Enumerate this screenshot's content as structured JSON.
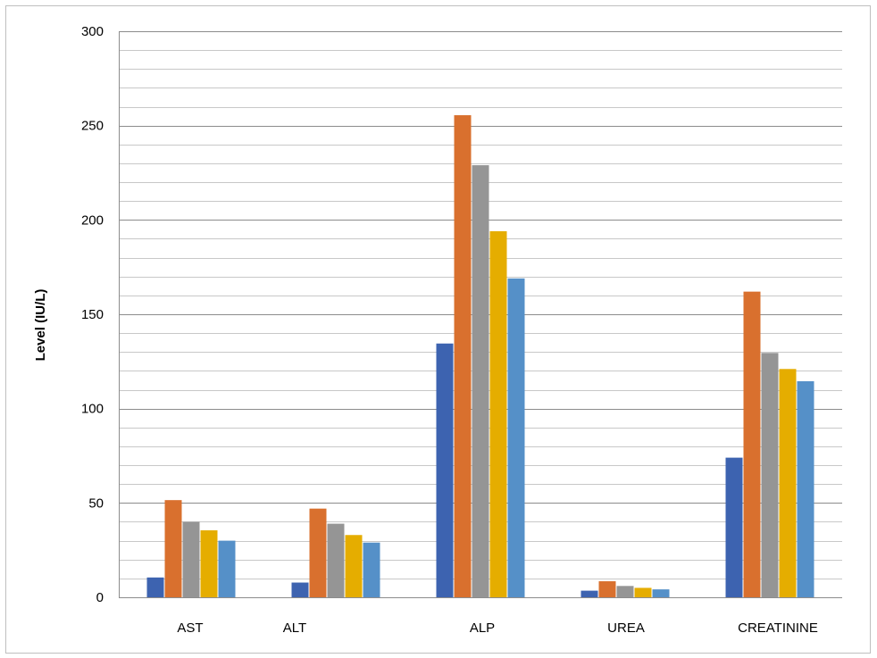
{
  "chart_data": {
    "type": "bar",
    "title": "",
    "xlabel": "",
    "ylabel": "Level (IU/L)",
    "ylim": [
      0,
      300
    ],
    "major_ticks": [
      0,
      50,
      100,
      150,
      200,
      250,
      300
    ],
    "minor_step": 10,
    "grid": true,
    "legend": "none",
    "categories": [
      "AST",
      "ALT",
      "ALP",
      "UREA",
      "CREATININE"
    ],
    "series": [
      {
        "color": "#3d63b0",
        "values": [
          10.5,
          7.8,
          134.5,
          3.5,
          74.0
        ]
      },
      {
        "color": "#d9702e",
        "values": [
          51.5,
          47.0,
          255.5,
          8.5,
          162.0
        ]
      },
      {
        "color": "#959595",
        "values": [
          40.0,
          39.0,
          229.0,
          6.0,
          129.5
        ]
      },
      {
        "color": "#e5ad00",
        "values": [
          35.5,
          33.0,
          194.0,
          5.0,
          121.0
        ]
      },
      {
        "color": "#5590c8",
        "values": [
          30.0,
          29.0,
          169.0,
          4.2,
          114.5
        ]
      }
    ]
  }
}
